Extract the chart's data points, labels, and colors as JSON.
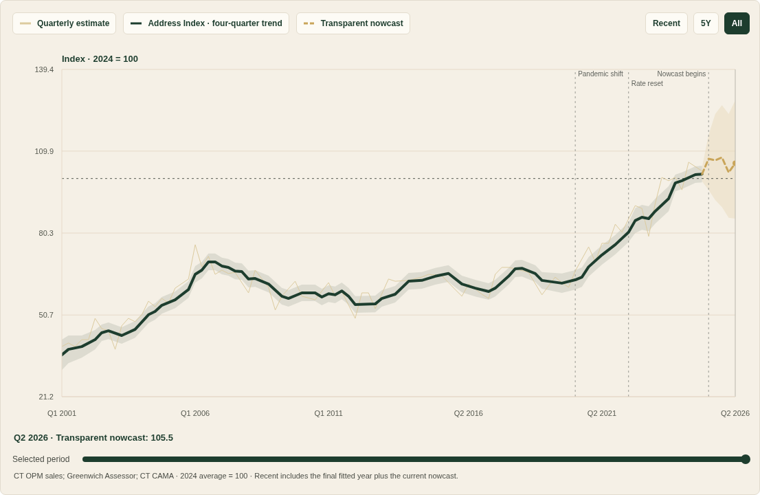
{
  "chart_data": {
    "type": "line",
    "ylabel": "Index · 2024 = 100",
    "xlim": [
      "2001-01",
      "2026-04"
    ],
    "xticks": [
      {
        "value": "2001-01",
        "label": "Q1 2001"
      },
      {
        "value": "2006-01",
        "label": "Q1 2006"
      },
      {
        "value": "2011-01",
        "label": "Q1 2011"
      },
      {
        "value": "2016-04",
        "label": "Q2 2016"
      },
      {
        "value": "2021-04",
        "label": "Q2 2021"
      },
      {
        "value": "2026-04",
        "label": "Q2 2026"
      }
    ],
    "ylim": [
      21.2,
      139.4
    ],
    "yticks": [
      21.2,
      50.7,
      80.3,
      109.9,
      139.4
    ],
    "grid": "y",
    "legend": "top left",
    "marker": "none",
    "series": [
      {
        "name": "Quarterly estimate",
        "color": "#dccb9f",
        "x": [
          "2001-01",
          "2001-04",
          "2001-07",
          "2001-10",
          "2002-01",
          "2002-04",
          "2002-07",
          "2002-10",
          "2003-01",
          "2003-04",
          "2003-07",
          "2003-10",
          "2004-01",
          "2004-04",
          "2004-07",
          "2004-10",
          "2005-01",
          "2005-04",
          "2005-10",
          "2006-01",
          "2006-04",
          "2006-07",
          "2006-10",
          "2007-01",
          "2007-04",
          "2007-07",
          "2008-01",
          "2008-04",
          "2008-10",
          "2009-01",
          "2009-04",
          "2009-10",
          "2010-01",
          "2010-07",
          "2011-01",
          "2011-04",
          "2011-07",
          "2012-01",
          "2012-04",
          "2012-07",
          "2012-10",
          "2013-04",
          "2013-07",
          "2014-01",
          "2014-07",
          "2014-10",
          "2015-04",
          "2015-10",
          "2016-01",
          "2016-04",
          "2016-10",
          "2017-01",
          "2017-04",
          "2017-07",
          "2017-10",
          "2018-01",
          "2018-07",
          "2019-01",
          "2019-07",
          "2019-10",
          "2020-01",
          "2020-04",
          "2020-10",
          "2021-01",
          "2021-04",
          "2021-07",
          "2021-10",
          "2022-01",
          "2022-07",
          "2022-10",
          "2023-01",
          "2023-04",
          "2023-07",
          "2023-10",
          "2024-01",
          "2024-04",
          "2024-07",
          "2025-01"
        ],
        "values": [
          39.3,
          40.6,
          39.3,
          41.8,
          41.8,
          49.5,
          45.8,
          45.0,
          38.3,
          46.8,
          49.5,
          48.3,
          50.8,
          55.7,
          53.7,
          56.7,
          55.0,
          60.4,
          63.7,
          76.1,
          68.1,
          71.9,
          65.4,
          66.9,
          65.7,
          66.1,
          58.7,
          66.9,
          60.7,
          52.5,
          57.5,
          62.9,
          57.5,
          56.2,
          62.4,
          57.5,
          59.2,
          49.5,
          58.7,
          58.7,
          53.0,
          63.7,
          62.9,
          63.2,
          64.4,
          65.4,
          64.9,
          59.9,
          57.5,
          61.9,
          58.2,
          56.7,
          65.4,
          67.9,
          67.9,
          67.4,
          66.1,
          58.0,
          64.4,
          62.4,
          60.7,
          66.6,
          75.3,
          69.9,
          76.6,
          76.6,
          83.5,
          80.6,
          90.2,
          89.2,
          79.1,
          91.0,
          100.4,
          99.2,
          100.4,
          95.9,
          105.9,
          102.7
        ]
      },
      {
        "name": "Address Index · four-quarter trend",
        "color": "#1d3d2e",
        "x": [
          "2001-01",
          "2001-04",
          "2001-10",
          "2002-04",
          "2002-07",
          "2002-10",
          "2003-04",
          "2003-10",
          "2004-04",
          "2004-07",
          "2004-10",
          "2005-04",
          "2005-10",
          "2006-01",
          "2006-04",
          "2006-07",
          "2006-10",
          "2007-01",
          "2007-04",
          "2007-07",
          "2007-10",
          "2008-01",
          "2008-04",
          "2008-10",
          "2009-04",
          "2009-07",
          "2010-01",
          "2010-07",
          "2010-10",
          "2011-01",
          "2011-04",
          "2011-07",
          "2011-10",
          "2012-01",
          "2012-10",
          "2013-01",
          "2013-07",
          "2014-01",
          "2014-07",
          "2015-01",
          "2015-07",
          "2016-01",
          "2016-07",
          "2017-01",
          "2017-04",
          "2017-10",
          "2018-01",
          "2018-04",
          "2018-10",
          "2019-01",
          "2019-10",
          "2020-04",
          "2020-07",
          "2020-10",
          "2021-04",
          "2021-10",
          "2022-04",
          "2022-07",
          "2022-10",
          "2023-01",
          "2023-04",
          "2023-10",
          "2024-01",
          "2024-04",
          "2024-10",
          "2025-01"
        ],
        "values": [
          36.3,
          38.3,
          39.3,
          41.8,
          44.3,
          45.0,
          43.3,
          45.5,
          50.8,
          52.0,
          54.2,
          56.2,
          59.9,
          65.4,
          66.9,
          69.9,
          69.9,
          68.4,
          67.9,
          66.6,
          66.4,
          63.7,
          63.9,
          61.9,
          57.5,
          56.7,
          58.7,
          58.7,
          57.2,
          58.4,
          58.0,
          59.4,
          57.5,
          54.5,
          54.7,
          56.7,
          58.2,
          62.9,
          63.2,
          64.7,
          65.7,
          61.9,
          60.4,
          59.2,
          60.4,
          64.7,
          67.4,
          67.6,
          65.7,
          63.2,
          62.2,
          63.4,
          64.4,
          68.1,
          72.4,
          76.1,
          80.6,
          84.8,
          86.0,
          85.5,
          88.2,
          92.7,
          98.4,
          99.2,
          101.4,
          101.6
        ],
        "lower": [
          30.8,
          33.3,
          35.3,
          38.3,
          41.3,
          42.0,
          40.3,
          42.5,
          47.8,
          49.0,
          51.2,
          53.2,
          56.9,
          62.4,
          63.9,
          66.9,
          66.9,
          65.4,
          64.9,
          63.6,
          63.4,
          60.7,
          60.9,
          58.9,
          54.5,
          53.7,
          55.7,
          55.7,
          54.2,
          55.4,
          55.0,
          56.4,
          54.5,
          51.5,
          51.7,
          53.7,
          55.2,
          59.9,
          60.2,
          61.7,
          62.7,
          58.9,
          57.4,
          56.2,
          57.4,
          61.7,
          64.4,
          64.6,
          62.7,
          60.2,
          58.7,
          59.9,
          60.9,
          64.6,
          68.9,
          72.6,
          77.1,
          80.3,
          81.5,
          81.0,
          83.7,
          88.2,
          95.4,
          96.2,
          98.4,
          98.6
        ],
        "upper": [
          41.8,
          43.3,
          43.3,
          45.3,
          47.3,
          48.0,
          46.3,
          48.5,
          53.8,
          55.0,
          57.2,
          59.2,
          62.9,
          68.4,
          69.9,
          72.9,
          72.9,
          71.4,
          70.9,
          69.6,
          69.4,
          66.7,
          66.9,
          64.9,
          60.5,
          59.7,
          61.7,
          61.7,
          60.2,
          61.4,
          61.0,
          62.4,
          60.5,
          57.5,
          57.7,
          59.7,
          61.2,
          65.9,
          66.2,
          67.7,
          68.7,
          64.9,
          63.4,
          62.2,
          63.4,
          67.7,
          70.4,
          70.6,
          68.7,
          66.2,
          65.7,
          66.9,
          67.9,
          71.6,
          75.9,
          79.6,
          84.1,
          89.3,
          90.5,
          90.0,
          92.7,
          97.2,
          101.4,
          102.2,
          104.4,
          104.6
        ]
      },
      {
        "name": "Transparent nowcast",
        "color": "#c9a55a",
        "line_style": "dashed",
        "x": [
          "2025-01",
          "2025-04",
          "2025-07",
          "2025-10",
          "2026-01",
          "2026-04"
        ],
        "values": [
          101.6,
          107.1,
          106.6,
          107.6,
          102.2,
          105.5
        ],
        "lower": [
          99.0,
          95.9,
          92.2,
          89.7,
          85.8,
          85.5
        ],
        "upper": [
          104.0,
          115.8,
          123.3,
          126.5,
          123.3,
          128.2
        ]
      }
    ],
    "ref_lines": [
      {
        "axis": "x",
        "value": "2020-04",
        "label": "Pandemic shift",
        "line_style": "dotted",
        "color": "#9a9a92"
      },
      {
        "axis": "x",
        "value": "2022-04",
        "label": "Rate reset",
        "line_style": "dotted",
        "color": "#9a9a92"
      },
      {
        "axis": "x",
        "value": "2025-04",
        "label": "Nowcast begins",
        "line_style": "dotted",
        "color": "#9a9a92"
      },
      {
        "axis": "x",
        "value": "2026-04",
        "label": null,
        "line_style": "solid",
        "color": "#b9b6ad"
      },
      {
        "axis": "y",
        "value": 100,
        "label": null,
        "line_style": "dotted",
        "color": "#555a52"
      }
    ],
    "annotations": [
      "Recent",
      "5Y",
      "All",
      "Q2 2026 · Transparent nowcast: 105.5",
      "Selected period",
      "CT OPM sales; Greenwich Assessor; CT CAMA · 2024 average = 100 · Recent includes the final fitted year plus the current nowcast."
    ]
  }
}
